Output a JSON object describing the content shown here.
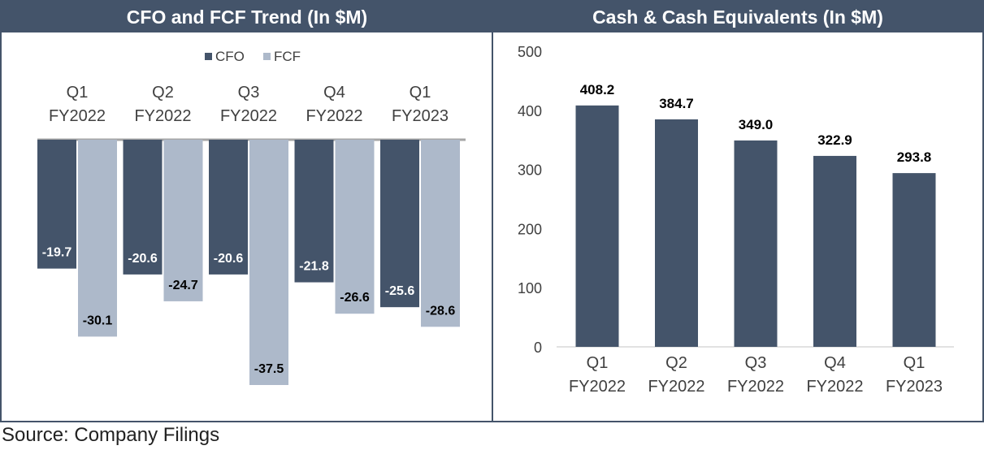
{
  "source": "Source: Company Filings",
  "colors": {
    "header": "#44546a",
    "cfo": "#44546a",
    "fcf": "#adb9ca",
    "text": "#000000",
    "axis": "#595959"
  },
  "chart_data": [
    {
      "type": "bar",
      "title": "CFO and FCF Trend (In $M)",
      "categories": [
        [
          "Q1",
          "FY2022"
        ],
        [
          "Q2",
          "FY2022"
        ],
        [
          "Q3",
          "FY2022"
        ],
        [
          "Q4",
          "FY2022"
        ],
        [
          "Q1",
          "FY2023"
        ]
      ],
      "legend_position": "top",
      "series": [
        {
          "name": "CFO",
          "values": [
            -19.7,
            -20.6,
            -20.6,
            -21.8,
            -25.6
          ]
        },
        {
          "name": "FCF",
          "values": [
            -30.1,
            -24.7,
            -37.5,
            -26.6,
            -28.6
          ]
        }
      ],
      "ylim": [
        -40,
        0
      ],
      "grid": false
    },
    {
      "type": "bar",
      "title": "Cash & Cash Equivalents (In $M)",
      "categories": [
        [
          "Q1",
          "FY2022"
        ],
        [
          "Q2",
          "FY2022"
        ],
        [
          "Q3",
          "FY2022"
        ],
        [
          "Q4",
          "FY2022"
        ],
        [
          "Q1",
          "FY2023"
        ]
      ],
      "values": [
        408.2,
        384.7,
        349.0,
        322.9,
        293.8
      ],
      "ylim": [
        0,
        500
      ],
      "yticks": [
        0,
        100,
        200,
        300,
        400,
        500
      ],
      "grid": false
    }
  ]
}
